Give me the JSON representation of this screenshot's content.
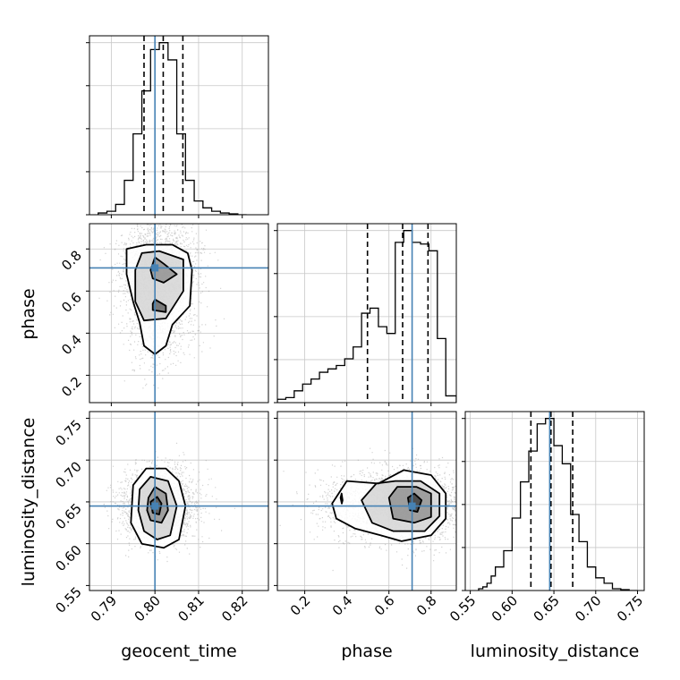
{
  "chart_data": {
    "type": "corner",
    "parameters": [
      "geocent_time",
      "phase",
      "luminosity_distance"
    ],
    "truth": {
      "geocent_time": 0.8,
      "phase": 0.71,
      "luminosity_distance": 0.645
    },
    "colors": {
      "truth": "#4682b4",
      "hist": "#000000",
      "grid": "#c8c8c8",
      "frame": "#000000"
    },
    "grid": true,
    "ranges": {
      "geocent_time": [
        0.785,
        0.826
      ],
      "phase": [
        0.07,
        0.92
      ],
      "luminosity_distance": [
        0.544,
        0.758
      ]
    },
    "ticks": {
      "geocent_time": [
        "0.79",
        "0.80",
        "0.81",
        "0.82"
      ],
      "phase": [
        "0.2",
        "0.4",
        "0.6",
        "0.8"
      ],
      "luminosity_distance": [
        "0.55",
        "0.60",
        "0.65",
        "0.70",
        "0.75"
      ]
    },
    "histograms": {
      "geocent_time": {
        "edges": [
          0.787,
          0.789,
          0.791,
          0.793,
          0.795,
          0.797,
          0.799,
          0.801,
          0.803,
          0.805,
          0.807,
          0.809,
          0.811,
          0.813,
          0.815,
          0.817,
          0.819,
          0.821
        ],
        "counts": [
          0.01,
          0.02,
          0.06,
          0.2,
          0.47,
          0.72,
          0.96,
          1.0,
          0.9,
          0.47,
          0.2,
          0.08,
          0.04,
          0.02,
          0.01,
          0.005,
          0.0
        ],
        "quantiles": [
          0.7975,
          0.8019,
          0.8064
        ]
      },
      "phase": {
        "edges": [
          0.07,
          0.11,
          0.15,
          0.19,
          0.23,
          0.27,
          0.31,
          0.35,
          0.39,
          0.43,
          0.47,
          0.51,
          0.55,
          0.59,
          0.63,
          0.67,
          0.71,
          0.75,
          0.79,
          0.83,
          0.87,
          0.92
        ],
        "counts": [
          0.02,
          0.03,
          0.07,
          0.11,
          0.14,
          0.18,
          0.2,
          0.22,
          0.26,
          0.33,
          0.53,
          0.56,
          0.45,
          0.41,
          0.95,
          1.02,
          0.95,
          0.94,
          0.9,
          0.38,
          0.04
        ],
        "quantiles": [
          0.498,
          0.665,
          0.7855
        ]
      },
      "luminosity_distance": {
        "edges": [
          0.56,
          0.565,
          0.57,
          0.575,
          0.58,
          0.59,
          0.6,
          0.61,
          0.62,
          0.63,
          0.64,
          0.65,
          0.66,
          0.67,
          0.68,
          0.69,
          0.7,
          0.71,
          0.72,
          0.73,
          0.74,
          0.75
        ],
        "counts": [
          0.01,
          0.02,
          0.04,
          0.08,
          0.13,
          0.22,
          0.4,
          0.6,
          0.77,
          0.92,
          0.95,
          0.8,
          0.7,
          0.42,
          0.27,
          0.13,
          0.07,
          0.04,
          0.01,
          0.005,
          0.0
        ],
        "quantiles": [
          0.6225,
          0.6465,
          0.6725
        ]
      }
    },
    "contours_2d": {
      "phase_vs_geocent_time": [
        [
          [
            0.7935,
            0.8
          ],
          [
            0.798,
            0.82
          ],
          [
            0.804,
            0.82
          ],
          [
            0.8075,
            0.78
          ],
          [
            0.8085,
            0.7
          ],
          [
            0.808,
            0.53
          ],
          [
            0.804,
            0.44
          ],
          [
            0.8025,
            0.34
          ],
          [
            0.8,
            0.3
          ],
          [
            0.7975,
            0.34
          ],
          [
            0.7965,
            0.45
          ],
          [
            0.795,
            0.55
          ],
          [
            0.7935,
            0.68
          ]
        ],
        [
          [
            0.7955,
            0.7
          ],
          [
            0.797,
            0.78
          ],
          [
            0.801,
            0.79
          ],
          [
            0.8065,
            0.75
          ],
          [
            0.8065,
            0.6
          ],
          [
            0.8025,
            0.47
          ],
          [
            0.7975,
            0.46
          ],
          [
            0.7955,
            0.55
          ]
        ],
        [
          [
            0.799,
            0.7
          ],
          [
            0.8,
            0.76
          ],
          [
            0.802,
            0.73
          ],
          [
            0.805,
            0.68
          ],
          [
            0.802,
            0.64
          ],
          [
            0.7995,
            0.66
          ]
        ],
        [
          [
            0.7995,
            0.54
          ],
          [
            0.8,
            0.56
          ],
          [
            0.8025,
            0.53
          ],
          [
            0.8025,
            0.5
          ],
          [
            0.7995,
            0.51
          ]
        ]
      ],
      "luminosity_distance_vs_geocent_time": [
        [
          [
            0.795,
            0.67
          ],
          [
            0.798,
            0.69
          ],
          [
            0.8025,
            0.69
          ],
          [
            0.8055,
            0.675
          ],
          [
            0.807,
            0.645
          ],
          [
            0.8055,
            0.605
          ],
          [
            0.802,
            0.595
          ],
          [
            0.797,
            0.6
          ],
          [
            0.7945,
            0.625
          ]
        ],
        [
          [
            0.7965,
            0.665
          ],
          [
            0.799,
            0.68
          ],
          [
            0.803,
            0.675
          ],
          [
            0.805,
            0.645
          ],
          [
            0.8035,
            0.61
          ],
          [
            0.8005,
            0.605
          ],
          [
            0.7975,
            0.615
          ],
          [
            0.7962,
            0.64
          ]
        ],
        [
          [
            0.7985,
            0.655
          ],
          [
            0.8,
            0.668
          ],
          [
            0.8025,
            0.66
          ],
          [
            0.803,
            0.64
          ],
          [
            0.8015,
            0.625
          ],
          [
            0.799,
            0.628
          ],
          [
            0.7982,
            0.64
          ]
        ],
        [
          [
            0.799,
            0.65
          ],
          [
            0.8005,
            0.656
          ],
          [
            0.8015,
            0.648
          ],
          [
            0.801,
            0.635
          ],
          [
            0.7995,
            0.637
          ]
        ]
      ],
      "luminosity_distance_vs_phase": [
        [
          [
            0.33,
            0.648
          ],
          [
            0.4,
            0.675
          ],
          [
            0.55,
            0.672
          ],
          [
            0.67,
            0.688
          ],
          [
            0.8,
            0.682
          ],
          [
            0.87,
            0.66
          ],
          [
            0.87,
            0.63
          ],
          [
            0.8,
            0.61
          ],
          [
            0.66,
            0.603
          ],
          [
            0.56,
            0.61
          ],
          [
            0.44,
            0.618
          ],
          [
            0.35,
            0.63
          ]
        ],
        [
          [
            0.47,
            0.652
          ],
          [
            0.54,
            0.672
          ],
          [
            0.63,
            0.675
          ],
          [
            0.75,
            0.675
          ],
          [
            0.84,
            0.66
          ],
          [
            0.84,
            0.633
          ],
          [
            0.77,
            0.615
          ],
          [
            0.62,
            0.615
          ],
          [
            0.52,
            0.625
          ]
        ],
        [
          [
            0.6,
            0.655
          ],
          [
            0.64,
            0.668
          ],
          [
            0.73,
            0.668
          ],
          [
            0.8,
            0.66
          ],
          [
            0.8,
            0.632
          ],
          [
            0.72,
            0.625
          ],
          [
            0.62,
            0.63
          ]
        ],
        [
          [
            0.37,
            0.655
          ],
          [
            0.375,
            0.66
          ],
          [
            0.38,
            0.652
          ],
          [
            0.376,
            0.648
          ]
        ],
        [
          [
            0.69,
            0.655
          ],
          [
            0.72,
            0.66
          ],
          [
            0.755,
            0.652
          ],
          [
            0.735,
            0.638
          ],
          [
            0.7,
            0.64
          ]
        ]
      ]
    },
    "samples_2d": {
      "phase_vs_geocent_time": {
        "x_center": 0.8008,
        "x_sd": 0.0042,
        "y_modes": [
          [
            0.7,
            0.12,
            0.78
          ],
          [
            0.45,
            0.12,
            0.22
          ]
        ],
        "count": 2600
      },
      "luminosity_distance_vs_geocent_time": {
        "x_center": 0.8008,
        "x_sd": 0.0042,
        "y_modes": [
          [
            0.646,
            0.021,
            1.0
          ]
        ],
        "count": 2600
      },
      "luminosity_distance_vs_phase": {
        "x_modes": [
          [
            0.7,
            0.12,
            0.78
          ],
          [
            0.45,
            0.12,
            0.22
          ]
        ],
        "y_center": 0.646,
        "y_sd": 0.021,
        "count": 2600
      }
    }
  }
}
